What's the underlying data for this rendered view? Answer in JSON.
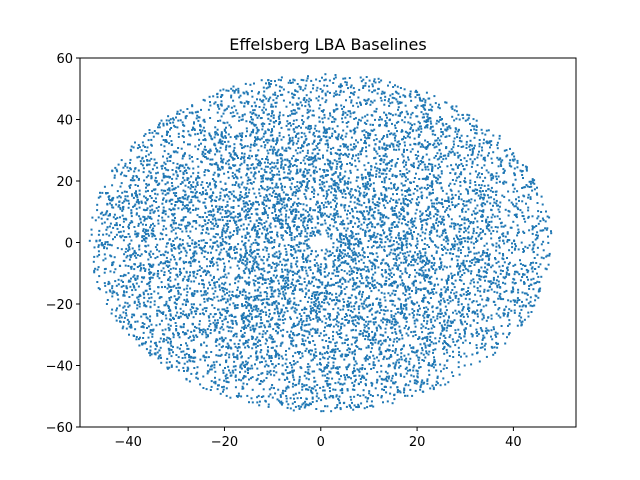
{
  "chart_data": {
    "type": "scatter",
    "title": "Effelsberg LBA Baselines",
    "xlabel": "",
    "ylabel": "",
    "xlim": [
      -50,
      53
    ],
    "ylim": [
      -60,
      60
    ],
    "xticks": [
      -40,
      -20,
      0,
      20,
      40
    ],
    "yticks": [
      -60,
      -40,
      -20,
      0,
      20,
      40,
      60
    ],
    "xtick_labels": [
      "−40",
      "−20",
      "0",
      "20",
      "40"
    ],
    "ytick_labels": [
      "−60",
      "−40",
      "−20",
      "0",
      "20",
      "40",
      "60"
    ],
    "grid": false,
    "legend": "none",
    "marker_color": "#1f77b4",
    "distribution": {
      "shape": "filled-ellipse",
      "x_extent": [
        -48,
        48
      ],
      "y_extent": [
        -55,
        55
      ],
      "center_gap": {
        "x": 0,
        "y": 0,
        "r": 2.5
      },
      "approx_points": 9000
    }
  }
}
